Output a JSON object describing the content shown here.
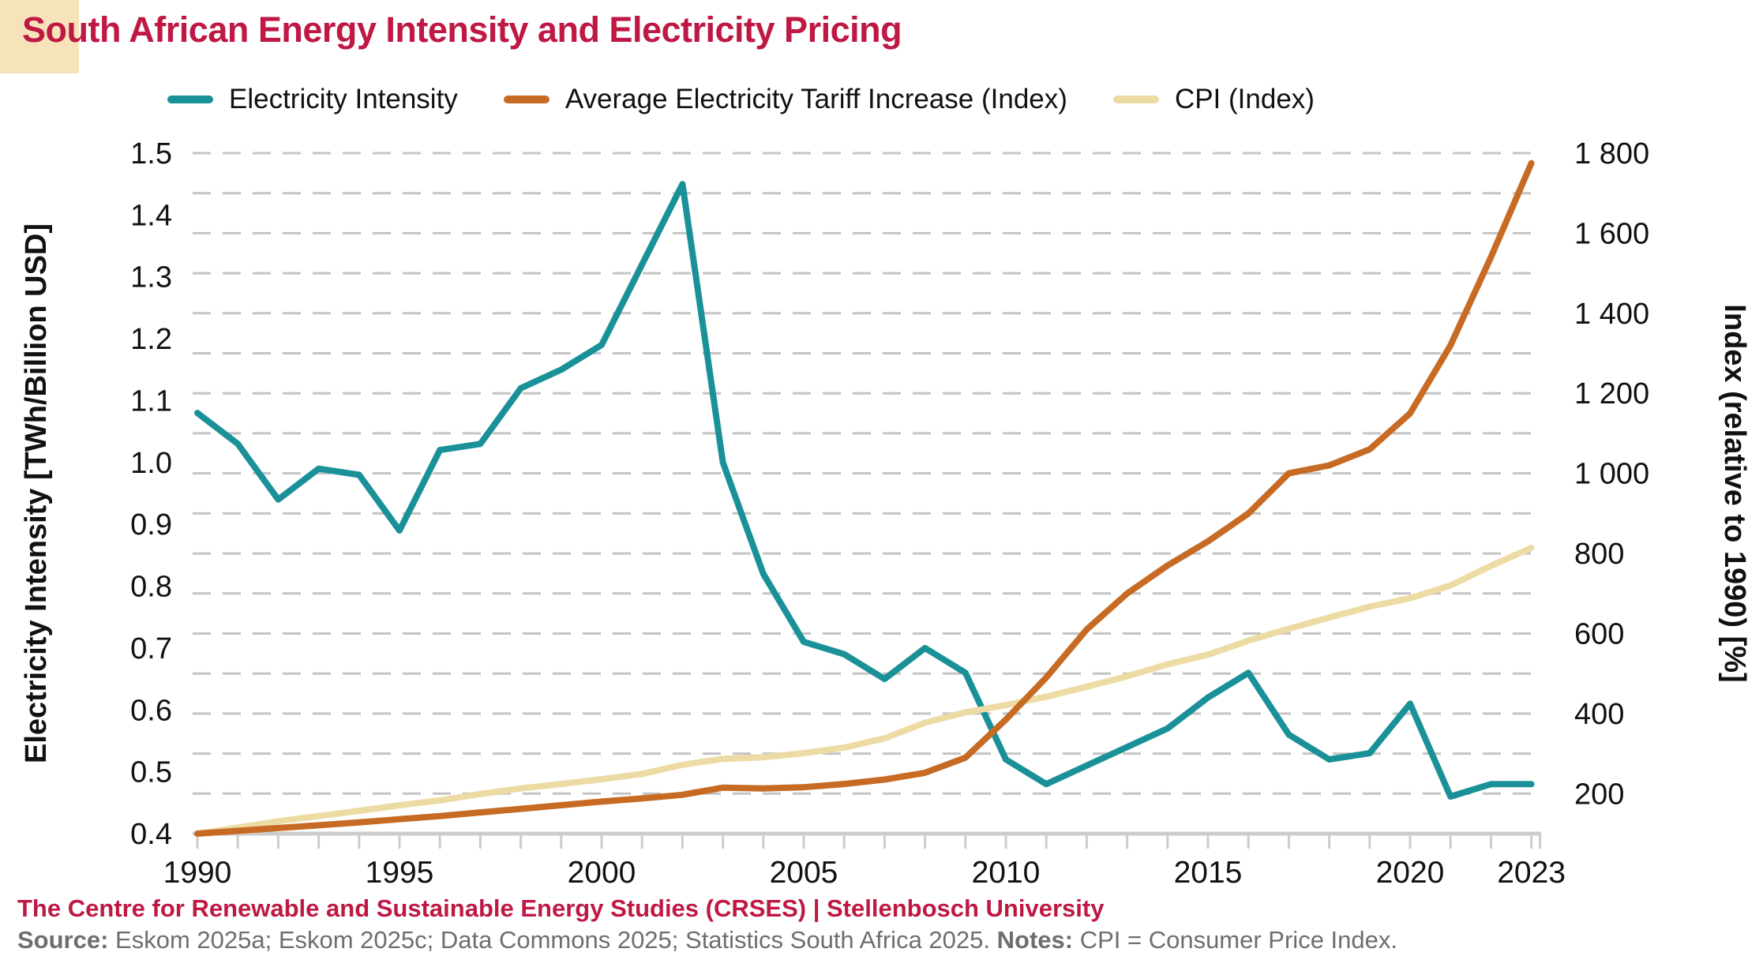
{
  "title": "South African Energy Intensity and Electricity Pricing",
  "colors": {
    "title": "#BE1843",
    "badge": "#F6E3BA",
    "teal": "#1A9198",
    "orange": "#C76B24",
    "cream": "#EDDBA4",
    "grid": "#C4C4C4",
    "axis": "#CCCCCC",
    "text": "#111111",
    "footer_gray": "#6e6e6e"
  },
  "legend": {
    "items": [
      {
        "label": "Electricity Intensity",
        "color": "teal"
      },
      {
        "label": "Average Electricity Tariff Increase (Index)",
        "color": "orange"
      },
      {
        "label": "CPI (Index)",
        "color": "cream"
      }
    ]
  },
  "footer": {
    "org": "The Centre for Renewable and Sustainable Energy Studies (CRSES) | Stellenbosch University",
    "source_label": "Source:",
    "source_text": " Eskom 2025a; Eskom 2025c; Data Commons 2025; Statistics South Africa 2025. ",
    "notes_label": "Notes:",
    "notes_text": " CPI = Consumer Price Index."
  },
  "chart_data": {
    "type": "line",
    "x_start_year": 1990,
    "x_end_year": 2023,
    "x_tick_labels": [
      "1990",
      "1995",
      "2000",
      "2005",
      "2010",
      "2015",
      "2020",
      "2023"
    ],
    "left_axis": {
      "label": "Electricity Intensity [TWh/Billion USD]",
      "min": 0.4,
      "max": 1.5,
      "ticks": [
        "1.5",
        "1.4",
        "1.3",
        "1.2",
        "1.1",
        "1.0",
        "0.9",
        "0.8",
        "0.7",
        "0.6",
        "0.5",
        "0.4"
      ]
    },
    "right_axis": {
      "label": "Index (relative to 1990) [%]",
      "min": 100,
      "max": 1800,
      "gridline_step": 100,
      "ticks": [
        "1 800",
        "1 600",
        "1 400",
        "1 200",
        "1 000",
        "800",
        "600",
        "400",
        "200"
      ]
    },
    "grid": "dashed horizontal, every 100 index units",
    "legend_position": "top",
    "series": [
      {
        "name": "Electricity Intensity",
        "axis": "left",
        "color": "teal",
        "values": [
          1.08,
          1.03,
          0.94,
          0.99,
          0.98,
          0.89,
          1.02,
          1.03,
          1.12,
          1.15,
          1.19,
          1.32,
          1.45,
          1.0,
          0.82,
          0.71,
          0.69,
          0.65,
          0.7,
          0.66,
          0.52,
          0.48,
          0.51,
          0.54,
          0.57,
          0.62,
          0.66,
          0.56,
          0.52,
          0.53,
          0.61,
          0.46,
          0.48,
          0.48
        ]
      },
      {
        "name": "Average Electricity Tariff Increase (Index)",
        "axis": "right",
        "color": "orange",
        "values": [
          100,
          107,
          114,
          121,
          128,
          136,
          144,
          153,
          162,
          171,
          180,
          188,
          197,
          215,
          213,
          216,
          224,
          235,
          252,
          290,
          385,
          490,
          610,
          700,
          770,
          830,
          900,
          1000,
          1020,
          1060,
          1150,
          1320,
          1540,
          1775
        ]
      },
      {
        "name": "CPI (Index)",
        "axis": "right",
        "color": "cream",
        "values": [
          100,
          115,
          131,
          144,
          157,
          171,
          183,
          199,
          213,
          224,
          236,
          249,
          272,
          287,
          291,
          301,
          315,
          338,
          377,
          403,
          421,
          442,
          467,
          493,
          523,
          547,
          582,
          612,
          640,
          667,
          688,
          720,
          769,
          814
        ]
      }
    ]
  }
}
